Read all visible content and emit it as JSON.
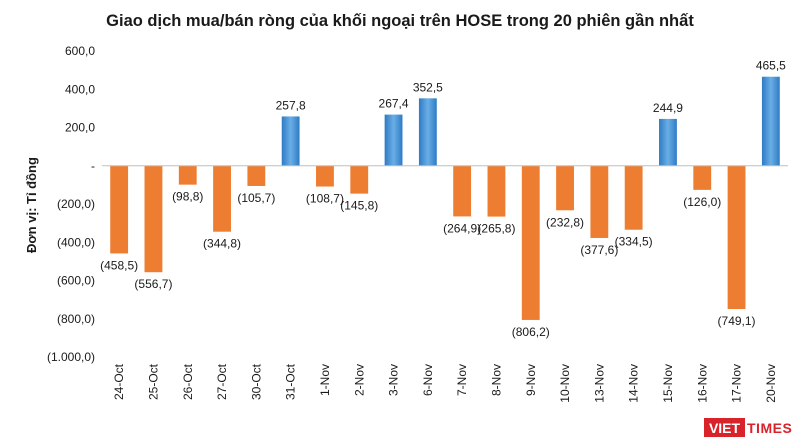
{
  "chart_data": {
    "type": "bar",
    "title": "Giao dịch mua/bán ròng của khối ngoại trên HOSE trong 20 phiên gần nhất",
    "xlabel": "",
    "ylabel": "Đơn vị: Tỉ đồng",
    "ylim": [
      -1000,
      600
    ],
    "yticks": [
      600,
      400,
      200,
      0,
      -200,
      -400,
      -600,
      -800,
      -1000
    ],
    "ytick_labels": [
      "600,0",
      "400,0",
      "200,0",
      "-",
      "(200,0)",
      "(400,0)",
      "(600,0)",
      "(800,0)",
      "(1.000,0)"
    ],
    "categories": [
      "24-Oct",
      "25-Oct",
      "26-Oct",
      "27-Oct",
      "30-Oct",
      "31-Oct",
      "1-Nov",
      "2-Nov",
      "3-Nov",
      "6-Nov",
      "7-Nov",
      "8-Nov",
      "9-Nov",
      "10-Nov",
      "13-Nov",
      "14-Nov",
      "15-Nov",
      "16-Nov",
      "17-Nov",
      "20-Nov"
    ],
    "values": [
      -458.5,
      -556.7,
      -98.8,
      -344.8,
      -105.7,
      257.8,
      -108.7,
      -145.8,
      267.4,
      352.5,
      -264.9,
      -265.8,
      -806.2,
      -232.8,
      -377.6,
      -334.5,
      244.9,
      -126.0,
      -749.1,
      465.5
    ],
    "data_labels": [
      "(458,5)",
      "(556,7)",
      "(98,8)",
      "(344,8)",
      "(105,7)",
      "257,8",
      "(108,7)",
      "(145,8)",
      "267,4",
      "352,5",
      "(264,9)",
      "(265,8)",
      "(806,2)",
      "(232,8)",
      "(377,6)",
      "(334,5)",
      "244,9",
      "(126,0)",
      "(749,1)",
      "465,5"
    ],
    "colors": {
      "positive": "#3d8fd6",
      "negative": "#ed7d31"
    },
    "grid": false,
    "legend": "none"
  },
  "logo": {
    "part1": "VIET",
    "part2": "TIMES",
    "colors": {
      "part1_bg": "#d8232a",
      "part2": "#d8232a"
    }
  }
}
